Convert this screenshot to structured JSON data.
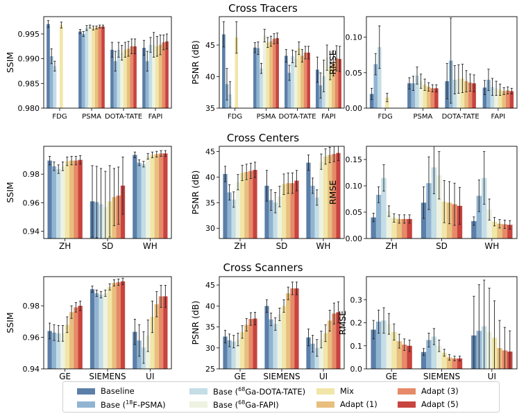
{
  "row_titles": [
    "Cross Tracers",
    "Cross Centers",
    "Cross Scanners"
  ],
  "legend": {
    "items": [
      {
        "key": "baseline",
        "pre": "Baseline",
        "sup": "",
        "post": "",
        "color": "#5b7fa8"
      },
      {
        "key": "psma",
        "pre": "Base (",
        "sup": "18",
        "post": "F-PSMA)",
        "color": "#91b4d2"
      },
      {
        "key": "dotatate",
        "pre": "Base (",
        "sup": "68",
        "post": "Ga-DOTA-TATE)",
        "color": "#c4dde6"
      },
      {
        "key": "fapi",
        "pre": "Base (",
        "sup": "68",
        "post": "Ga-FAPI)",
        "color": "#eef2e0"
      },
      {
        "key": "mix",
        "pre": "Mix",
        "sup": "",
        "post": "",
        "color": "#f1e6a8"
      },
      {
        "key": "adapt1",
        "pre": "Adapt (1)",
        "sup": "",
        "post": "",
        "color": "#e8bf7e"
      },
      {
        "key": "adapt3",
        "pre": "Adapt (3)",
        "sup": "",
        "post": "",
        "color": "#e68a68"
      },
      {
        "key": "adapt5",
        "pre": "Adapt (5)",
        "sup": "",
        "post": "",
        "color": "#c8443f"
      }
    ]
  },
  "chart_data": [
    {
      "type": "bar",
      "row": 0,
      "col": 0,
      "ylabel": "SSIM",
      "ylim": [
        0.98,
        0.9985
      ],
      "yticks": [
        0.98,
        0.985,
        0.99,
        0.995
      ],
      "ytick_labels": [
        "0.980",
        "0.985",
        "0.990",
        "0.995"
      ],
      "categories": [
        "FDG",
        "PSMA",
        "DOTA-TATE",
        "FAPI"
      ],
      "values": [
        [
          0.997,
          0.9905,
          0.9885,
          null,
          0.9968,
          null,
          null,
          null
        ],
        [
          0.9955,
          0.995,
          0.9962,
          0.9965,
          0.9962,
          0.9963,
          0.9965,
          0.9965
        ],
        [
          0.9918,
          0.9895,
          0.9918,
          0.9912,
          0.9918,
          0.992,
          0.9925,
          0.9925
        ],
        [
          0.9922,
          0.9895,
          0.9928,
          0.9928,
          0.9925,
          0.9928,
          0.9933,
          0.9935
        ]
      ],
      "errors": [
        [
          0.0007,
          0.0015,
          0.001,
          0,
          0.0006,
          0,
          0,
          0
        ],
        [
          0.0004,
          0.0005,
          0.0005,
          0.0003,
          0.0004,
          0.0003,
          0.0003,
          0.0003
        ],
        [
          0.0015,
          0.002,
          0.0015,
          0.0015,
          0.0015,
          0.0015,
          0.0015,
          0.0015
        ],
        [
          0.0015,
          0.002,
          0.0015,
          0.0025,
          0.002,
          0.002,
          0.0015,
          0.0015
        ]
      ]
    },
    {
      "type": "bar",
      "row": 0,
      "col": 1,
      "ylabel": "PSNR (dB)",
      "ylim": [
        35,
        49.5
      ],
      "yticks": [
        35,
        40,
        45
      ],
      "ytick_labels": [
        "35",
        "40",
        "45"
      ],
      "categories": [
        "FDG",
        "PSMA",
        "DOTA-TATE",
        "FAPI"
      ],
      "values": [
        [
          46.7,
          38.8,
          37.2,
          null,
          46.2,
          null,
          null,
          null
        ],
        [
          44.6,
          44.5,
          41.3,
          46.5,
          45.4,
          45.6,
          46.0,
          46.1
        ],
        [
          43.3,
          40.6,
          43.2,
          42.8,
          44.5,
          43.3,
          43.8,
          43.8
        ],
        [
          41.1,
          38.6,
          40.1,
          43.0,
          41.5,
          42.1,
          42.9,
          42.8
        ]
      ],
      "errors": [
        [
          2.0,
          2.5,
          2.0,
          0,
          2.5,
          0,
          0,
          0
        ],
        [
          0.8,
          1.0,
          0.8,
          1.0,
          0.8,
          0.8,
          0.8,
          0.8
        ],
        [
          1.0,
          1.2,
          1.0,
          1.2,
          1.0,
          1.0,
          1.0,
          1.0
        ],
        [
          2.0,
          2.0,
          2.5,
          2.0,
          2.0,
          2.0,
          2.0,
          2.0
        ]
      ]
    },
    {
      "type": "bar",
      "row": 0,
      "col": 2,
      "ylabel": "RMSE",
      "ylim": [
        0,
        0.129
      ],
      "yticks": [
        0,
        0.05,
        0.1
      ],
      "ytick_labels": [
        "0.00",
        "0.05",
        "0.10"
      ],
      "categories": [
        "FDG",
        "PSMA",
        "DOTA-TATE",
        "FAPI"
      ],
      "values": [
        [
          0.02,
          0.062,
          0.086,
          null,
          0.015,
          null,
          null,
          null
        ],
        [
          0.035,
          0.035,
          0.046,
          0.038,
          0.033,
          0.03,
          0.028,
          0.028
        ],
        [
          0.038,
          0.067,
          0.04,
          0.041,
          0.042,
          0.038,
          0.036,
          0.035
        ],
        [
          0.029,
          0.04,
          0.03,
          0.028,
          0.026,
          0.024,
          0.025,
          0.024
        ]
      ],
      "errors": [
        [
          0.008,
          0.015,
          0.03,
          0,
          0.006,
          0,
          0,
          0
        ],
        [
          0.008,
          0.01,
          0.012,
          0.01,
          0.008,
          0.006,
          0.005,
          0.005
        ],
        [
          0.025,
          0.06,
          0.02,
          0.02,
          0.02,
          0.015,
          0.012,
          0.012
        ],
        [
          0.01,
          0.015,
          0.012,
          0.01,
          0.008,
          0.005,
          0.005,
          0.004
        ]
      ]
    },
    {
      "type": "bar",
      "row": 1,
      "col": 0,
      "ylabel": "SSIM",
      "ylim": [
        0.935,
        0.9995
      ],
      "yticks": [
        0.94,
        0.96,
        0.98
      ],
      "ytick_labels": [
        "0.94",
        "0.96",
        "0.98"
      ],
      "categories": [
        "ZH",
        "SD",
        "WH"
      ],
      "values": [
        [
          0.9895,
          0.9855,
          0.9835,
          0.9855,
          0.989,
          0.9895,
          0.9895,
          0.99
        ],
        [
          0.961,
          0.9605,
          0.959,
          0.957,
          0.961,
          0.964,
          0.965,
          0.972
        ],
        [
          0.9935,
          0.988,
          0.987,
          0.9925,
          0.9935,
          0.994,
          0.9945,
          0.9945
        ]
      ],
      "errors": [
        [
          0.003,
          0.003,
          0.003,
          0.003,
          0.003,
          0.003,
          0.003,
          0.003
        ],
        [
          0.025,
          0.025,
          0.025,
          0.025,
          0.025,
          0.02,
          0.02,
          0.02
        ],
        [
          0.002,
          0.002,
          0.002,
          0.002,
          0.002,
          0.002,
          0.002,
          0.002
        ]
      ]
    },
    {
      "type": "bar",
      "row": 1,
      "col": 1,
      "ylabel": "PSNR (dB)",
      "ylim": [
        28,
        46
      ],
      "yticks": [
        30,
        35,
        40,
        45
      ],
      "ytick_labels": [
        "30",
        "35",
        "40",
        "45"
      ],
      "categories": [
        "ZH",
        "SD",
        "WH"
      ],
      "values": [
        [
          40.6,
          37.0,
          35.6,
          39.0,
          40.8,
          41.0,
          41.2,
          41.4
        ],
        [
          38.3,
          35.5,
          35.0,
          36.2,
          38.6,
          38.8,
          38.8,
          39.3
        ],
        [
          42.8,
          38.3,
          36.0,
          43.0,
          44.0,
          44.3,
          44.5,
          44.7
        ]
      ],
      "errors": [
        [
          1.5,
          1.5,
          1.5,
          1.5,
          1.5,
          1.5,
          1.5,
          1.5
        ],
        [
          3.0,
          2.0,
          2.0,
          2.0,
          2.0,
          2.0,
          2.0,
          2.0
        ],
        [
          1.5,
          1.5,
          1.5,
          1.5,
          1.5,
          1.5,
          1.5,
          1.5
        ]
      ]
    },
    {
      "type": "bar",
      "row": 1,
      "col": 2,
      "ylabel": "RMSE",
      "ylim": [
        0,
        0.175
      ],
      "yticks": [
        0,
        0.05,
        0.1,
        0.15
      ],
      "ytick_labels": [
        "0.00",
        "0.05",
        "0.10",
        "0.15"
      ],
      "categories": [
        "ZH",
        "SD",
        "WH"
      ],
      "values": [
        [
          0.04,
          0.083,
          0.115,
          0.052,
          0.039,
          0.037,
          0.037,
          0.037
        ],
        [
          0.068,
          0.105,
          0.135,
          0.12,
          0.07,
          0.068,
          0.065,
          0.062
        ],
        [
          0.033,
          0.081,
          0.115,
          0.055,
          0.032,
          0.028,
          0.027,
          0.026
        ]
      ],
      "errors": [
        [
          0.008,
          0.015,
          0.025,
          0.01,
          0.008,
          0.008,
          0.008,
          0.008
        ],
        [
          0.03,
          0.05,
          0.05,
          0.045,
          0.04,
          0.04,
          0.04,
          0.035
        ],
        [
          0.008,
          0.03,
          0.05,
          0.02,
          0.008,
          0.008,
          0.008,
          0.008
        ]
      ]
    },
    {
      "type": "bar",
      "row": 2,
      "col": 0,
      "ylabel": "SSIM",
      "ylim": [
        0.94,
        0.9985
      ],
      "yticks": [
        0.94,
        0.96,
        0.98
      ],
      "ytick_labels": [
        "0.94",
        "0.96",
        "0.98"
      ],
      "categories": [
        "GE",
        "SIEMENS",
        "UI"
      ],
      "values": [
        [
          0.964,
          0.963,
          0.9625,
          0.9625,
          0.968,
          0.976,
          0.979,
          0.98
        ],
        [
          0.9905,
          0.988,
          0.987,
          0.988,
          0.992,
          0.9945,
          0.995,
          0.9955
        ],
        [
          0.9635,
          0.958,
          0.9535,
          0.961,
          0.973,
          0.981,
          0.986,
          0.986
        ]
      ],
      "errors": [
        [
          0.005,
          0.005,
          0.005,
          0.005,
          0.005,
          0.004,
          0.003,
          0.003
        ],
        [
          0.002,
          0.002,
          0.002,
          0.002,
          0.002,
          0.002,
          0.002,
          0.002
        ],
        [
          0.008,
          0.01,
          0.01,
          0.01,
          0.01,
          0.008,
          0.007,
          0.007
        ]
      ]
    },
    {
      "type": "bar",
      "row": 2,
      "col": 1,
      "ylabel": "PSNR (dB)",
      "ylim": [
        25,
        47
      ],
      "yticks": [
        25,
        30,
        35,
        40,
        45
      ],
      "ytick_labels": [
        "25",
        "30",
        "35",
        "40",
        "45"
      ],
      "categories": [
        "GE",
        "SIEMENS",
        "UI"
      ],
      "values": [
        [
          32.7,
          31.8,
          31.5,
          32.0,
          33.8,
          35.5,
          36.9,
          37.0
        ],
        [
          40.0,
          36.8,
          35.7,
          38.0,
          40.0,
          43.0,
          44.2,
          44.2
        ],
        [
          32.5,
          31.0,
          30.0,
          32.0,
          33.5,
          36.5,
          38.2,
          38.5
        ]
      ],
      "errors": [
        [
          1.5,
          1.5,
          1.5,
          1.5,
          1.5,
          1.5,
          1.5,
          1.5
        ],
        [
          1.5,
          1.5,
          1.5,
          1.5,
          1.5,
          1.5,
          1.5,
          1.5
        ],
        [
          2.0,
          2.0,
          2.0,
          2.0,
          2.0,
          2.5,
          2.5,
          2.5
        ]
      ]
    },
    {
      "type": "bar",
      "row": 2,
      "col": 2,
      "ylabel": "RMSE",
      "ylim": [
        0,
        0.4
      ],
      "yticks": [
        0,
        0.1,
        0.2,
        0.3
      ],
      "ytick_labels": [
        "0.0",
        "0.1",
        "0.2",
        "0.3"
      ],
      "categories": [
        "GE",
        "SIEMENS",
        "UI"
      ],
      "values": [
        [
          0.17,
          0.205,
          0.21,
          0.195,
          0.16,
          0.12,
          0.105,
          0.1
        ],
        [
          0.073,
          0.125,
          0.14,
          0.1,
          0.07,
          0.05,
          0.045,
          0.045
        ],
        [
          0.145,
          0.165,
          0.185,
          0.16,
          0.135,
          0.09,
          0.08,
          0.075
        ]
      ],
      "errors": [
        [
          0.04,
          0.05,
          0.055,
          0.045,
          0.035,
          0.03,
          0.025,
          0.025
        ],
        [
          0.015,
          0.03,
          0.035,
          0.025,
          0.015,
          0.012,
          0.01,
          0.01
        ],
        [
          0.17,
          0.2,
          0.2,
          0.19,
          0.16,
          0.12,
          0.1,
          0.09
        ]
      ]
    }
  ]
}
